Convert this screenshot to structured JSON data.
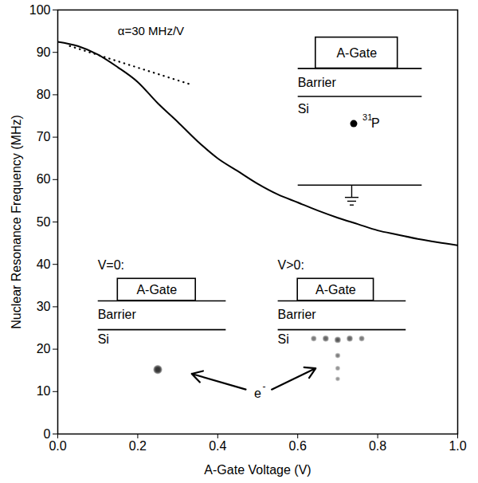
{
  "chart_data": {
    "type": "line",
    "xlabel": "A-Gate Voltage (V)",
    "ylabel": "Nuclear Resonance Frequency (MHz)",
    "xlim": [
      0,
      1
    ],
    "ylim": [
      0,
      100
    ],
    "xticks": [
      {
        "value": 0,
        "label": "0.0"
      },
      0.2,
      0.4,
      0.6,
      0.8,
      {
        "value": 1,
        "label": "1.0"
      }
    ],
    "yticks": [
      0,
      10,
      20,
      30,
      40,
      50,
      60,
      70,
      80,
      90,
      100
    ],
    "grid": false,
    "series": [
      {
        "color": "#000000",
        "line_style": "solid",
        "x": [
          0,
          0.05,
          0.1,
          0.15,
          0.2,
          0.25,
          0.3,
          0.35,
          0.4,
          0.45,
          0.5,
          0.55,
          0.6,
          0.65,
          0.7,
          0.75,
          0.8,
          0.85,
          0.9,
          0.95,
          1.0
        ],
        "values": [
          92.5,
          91.5,
          89.5,
          86.5,
          83,
          78,
          73.6,
          69,
          65,
          62,
          59,
          56.5,
          54.6,
          52.7,
          51,
          49.5,
          48,
          47,
          46,
          45.2,
          44.5
        ]
      },
      {
        "name": "α=30 MHz/V",
        "color": "#000000",
        "line_style": "dotted",
        "x": [
          0.03,
          0.33
        ],
        "values": [
          91.5,
          82.5
        ]
      }
    ],
    "annotations": {
      "gate": "A-Gate",
      "barrier": "Barrier",
      "si": "Si",
      "p_mass": "31",
      "p_symbol": "P",
      "v0": "V=0:",
      "vpos": "V>0:",
      "electron": "e",
      "electron_charge": "-"
    }
  }
}
